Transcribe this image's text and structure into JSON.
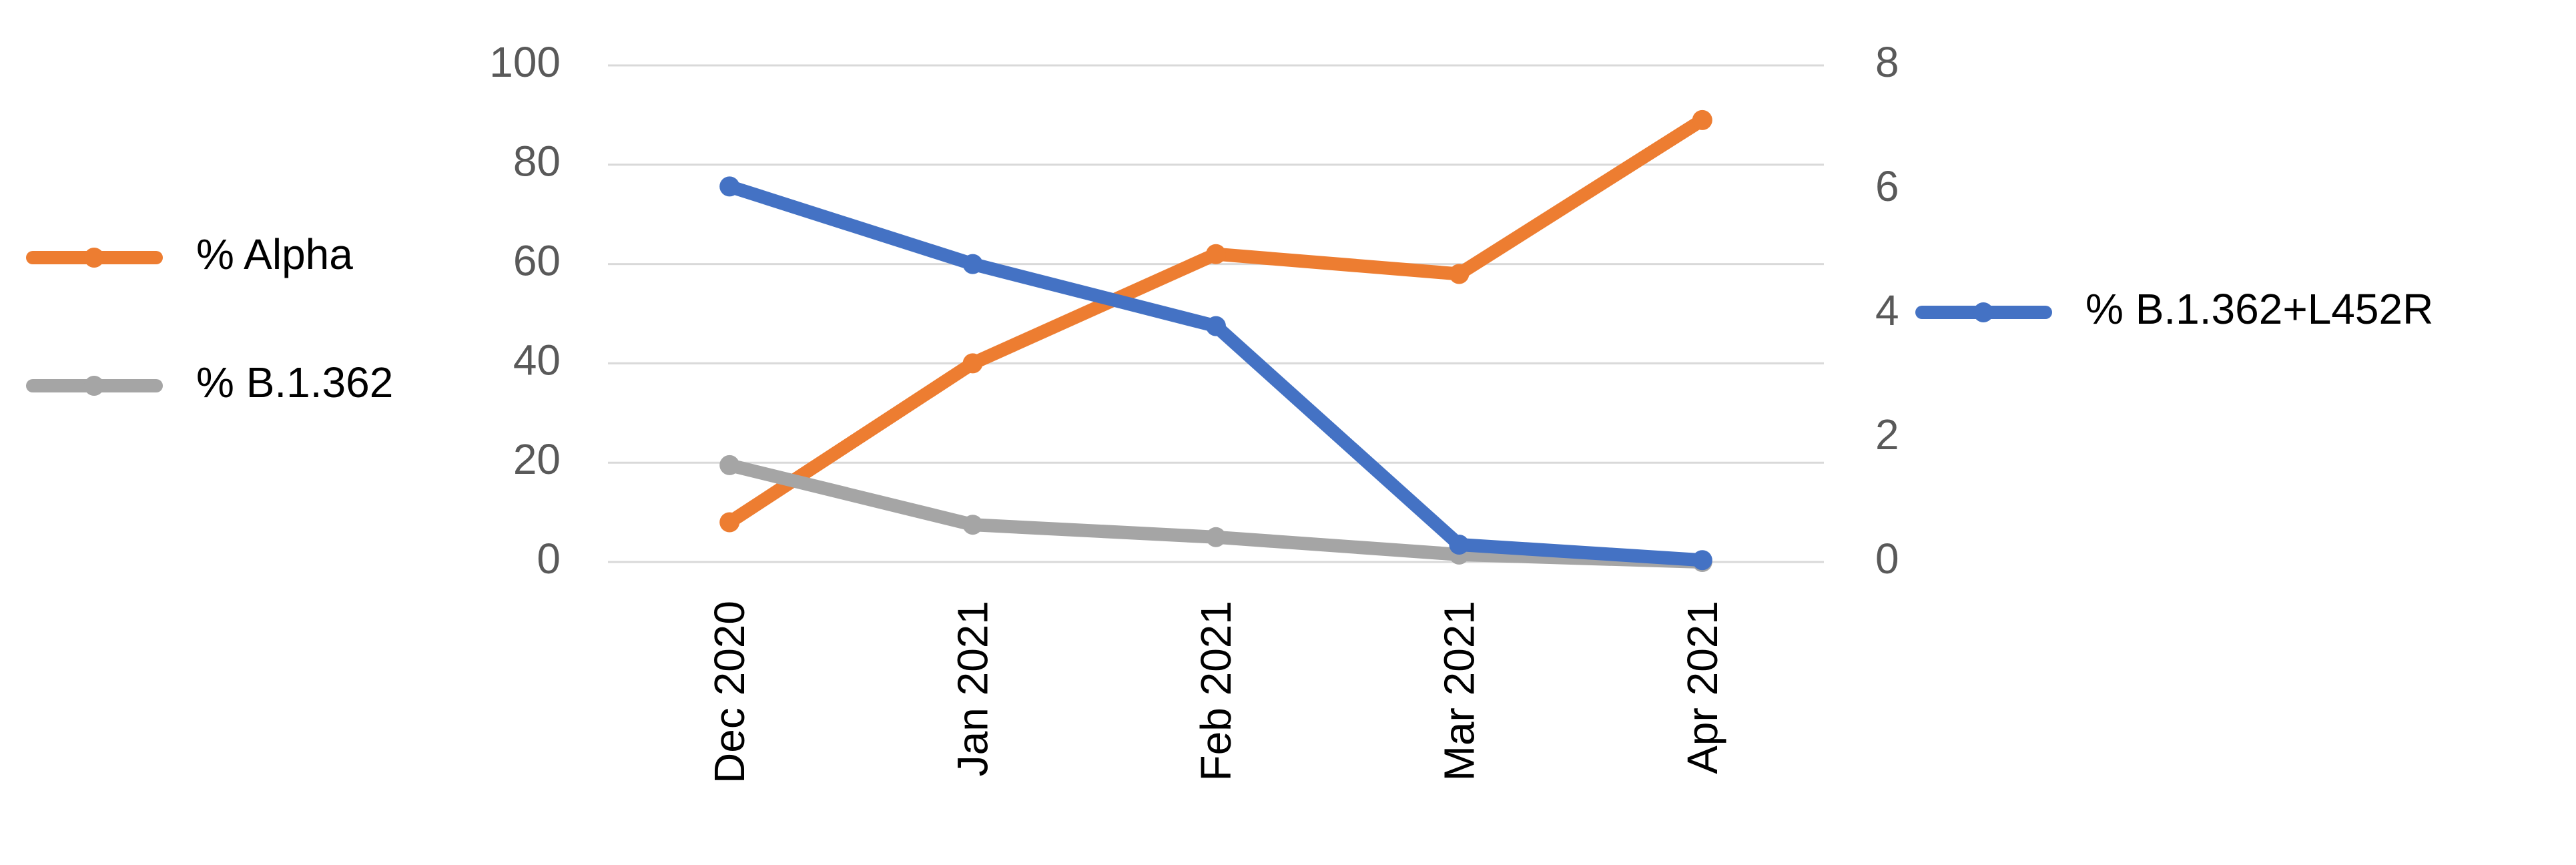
{
  "chart_data": {
    "type": "line",
    "categories": [
      "Dec 2020",
      "Jan 2021",
      "Feb 2021",
      "Mar 2021",
      "Apr 2021"
    ],
    "series": [
      {
        "name": "% Alpha",
        "color": "#ed7d31",
        "values": [
          8,
          40,
          62,
          58,
          89
        ]
      },
      {
        "name": "% B.1.362",
        "color": "#a5a5a5",
        "values": [
          19.5,
          7.5,
          5,
          1.5,
          0
        ]
      },
      {
        "name": "% B.1.362+L452R",
        "color": "#4472c4",
        "axis": "y2",
        "values": [
          6.05,
          4.8,
          3.8,
          0.28,
          0.03
        ]
      }
    ],
    "ylim": [
      0,
      100
    ],
    "yticks": [
      0,
      20,
      40,
      60,
      80,
      100
    ],
    "y2lim": [
      0,
      8
    ],
    "y2ticks": [
      0,
      2,
      4,
      6,
      8
    ],
    "grid": true
  }
}
